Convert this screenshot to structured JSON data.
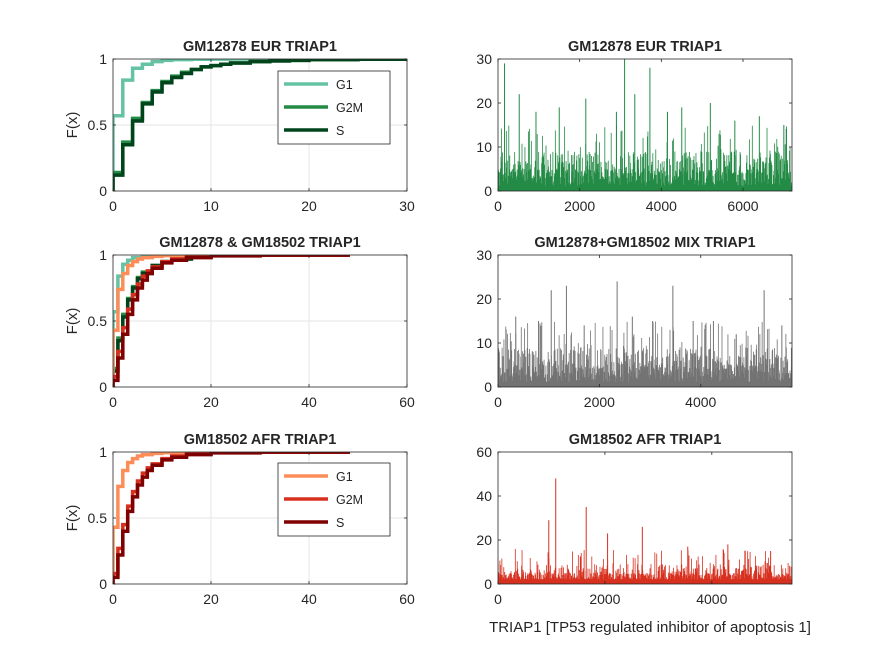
{
  "figure": {
    "xlabel": "TRIAP1 [TP53 regulated inhibitor of apoptosis 1]"
  },
  "chart_data": [
    {
      "type": "line",
      "title": "GM12878 EUR TRIAP1",
      "xlabel": "",
      "ylabel": "F(x)",
      "xlim": [
        0,
        30
      ],
      "ylim": [
        0,
        1
      ],
      "xticks": [
        0,
        10,
        20,
        30
      ],
      "yticks": [
        0,
        0.5,
        1
      ],
      "grid": true,
      "legend": "top-right",
      "series": [
        {
          "name": "G1",
          "color": "#66c2a4",
          "x": [
            0,
            1,
            2,
            3,
            4,
            5,
            6,
            8,
            10,
            12,
            15,
            20,
            30
          ],
          "y": [
            0.57,
            0.84,
            0.93,
            0.96,
            0.98,
            0.99,
            0.995,
            0.998,
            0.999,
            1.0,
            1.0,
            1.0,
            1.0
          ]
        },
        {
          "name": "G2M",
          "color": "#238b45",
          "x": [
            0,
            1,
            2,
            3,
            4,
            5,
            6,
            7,
            8,
            9,
            10,
            11,
            12,
            14,
            16,
            18,
            20,
            25,
            30
          ],
          "y": [
            0.14,
            0.37,
            0.55,
            0.67,
            0.76,
            0.83,
            0.87,
            0.9,
            0.92,
            0.94,
            0.95,
            0.96,
            0.97,
            0.98,
            0.987,
            0.99,
            0.995,
            0.998,
            1.0
          ]
        },
        {
          "name": "S",
          "color": "#00441b",
          "x": [
            0,
            1,
            2,
            3,
            4,
            5,
            6,
            7,
            8,
            9,
            10,
            11,
            12,
            14,
            16,
            18,
            20,
            25,
            30
          ],
          "y": [
            0.12,
            0.35,
            0.53,
            0.66,
            0.75,
            0.82,
            0.86,
            0.89,
            0.92,
            0.94,
            0.95,
            0.96,
            0.97,
            0.98,
            0.985,
            0.99,
            0.995,
            0.998,
            1.0
          ]
        }
      ]
    },
    {
      "type": "bar",
      "title": "GM12878 EUR TRIAP1",
      "xlabel": "",
      "ylabel": "",
      "xlim": [
        0,
        7200
      ],
      "ylim": [
        0,
        30
      ],
      "xticks": [
        0,
        2000,
        4000,
        6000
      ],
      "yticks": [
        0,
        10,
        20,
        30
      ],
      "grid": false,
      "color": "#238b45",
      "n": 7200,
      "peaks": [
        [
          160,
          29
        ],
        [
          520,
          22
        ],
        [
          930,
          18
        ],
        [
          1500,
          19
        ],
        [
          2150,
          21
        ],
        [
          2900,
          18
        ],
        [
          3100,
          30
        ],
        [
          3350,
          22
        ],
        [
          3720,
          28
        ],
        [
          4150,
          18
        ],
        [
          4500,
          19
        ],
        [
          5200,
          20
        ],
        [
          5800,
          16
        ],
        [
          6400,
          17
        ],
        [
          7000,
          15
        ]
      ]
    },
    {
      "type": "line",
      "title": "GM12878 & GM18502 TRIAP1",
      "xlabel": "",
      "ylabel": "F(x)",
      "xlim": [
        0,
        60
      ],
      "ylim": [
        0,
        1
      ],
      "xticks": [
        0,
        20,
        40,
        60
      ],
      "yticks": [
        0,
        0.5,
        1
      ],
      "grid": true,
      "legend": "none",
      "series": [
        {
          "color": "#66c2a4",
          "x": [
            0,
            1,
            2,
            3,
            4,
            6,
            8,
            12,
            30
          ],
          "y": [
            0.57,
            0.84,
            0.93,
            0.96,
            0.98,
            0.995,
            0.998,
            1.0,
            1.0
          ]
        },
        {
          "color": "#238b45",
          "x": [
            0,
            1,
            2,
            3,
            4,
            5,
            6,
            8,
            10,
            12,
            16,
            20,
            30
          ],
          "y": [
            0.14,
            0.37,
            0.55,
            0.67,
            0.76,
            0.83,
            0.87,
            0.92,
            0.95,
            0.97,
            0.987,
            0.995,
            1.0
          ]
        },
        {
          "color": "#00441b",
          "x": [
            0,
            1,
            2,
            3,
            4,
            5,
            6,
            8,
            10,
            12,
            16,
            20,
            30
          ],
          "y": [
            0.12,
            0.35,
            0.53,
            0.66,
            0.75,
            0.82,
            0.86,
            0.92,
            0.95,
            0.97,
            0.985,
            0.995,
            1.0
          ]
        },
        {
          "color": "#fc8d59",
          "x": [
            0,
            1,
            2,
            3,
            4,
            5,
            6,
            8,
            10,
            14,
            20,
            30,
            48
          ],
          "y": [
            0.43,
            0.74,
            0.86,
            0.92,
            0.95,
            0.97,
            0.98,
            0.99,
            0.995,
            0.998,
            0.999,
            1.0,
            1.0
          ]
        },
        {
          "color": "#d7301f",
          "x": [
            0,
            1,
            2,
            3,
            4,
            5,
            6,
            7,
            8,
            10,
            12,
            15,
            20,
            30,
            48
          ],
          "y": [
            0.08,
            0.27,
            0.45,
            0.59,
            0.7,
            0.78,
            0.84,
            0.88,
            0.91,
            0.95,
            0.97,
            0.985,
            0.995,
            0.999,
            1.0
          ]
        },
        {
          "color": "#7f0000",
          "x": [
            0,
            1,
            2,
            3,
            4,
            5,
            6,
            7,
            8,
            10,
            12,
            15,
            20,
            30,
            48
          ],
          "y": [
            0.05,
            0.22,
            0.4,
            0.55,
            0.66,
            0.75,
            0.81,
            0.86,
            0.9,
            0.94,
            0.96,
            0.98,
            0.993,
            0.999,
            1.0
          ]
        }
      ]
    },
    {
      "type": "bar",
      "title": "GM12878+GM18502 MIX TRIAP1",
      "xlabel": "",
      "ylabel": "",
      "xlim": [
        0,
        5800
      ],
      "ylim": [
        0,
        30
      ],
      "xticks": [
        0,
        2000,
        4000
      ],
      "yticks": [
        0,
        10,
        20,
        30
      ],
      "grid": false,
      "color": "#737373",
      "n": 5800,
      "peaks": [
        [
          350,
          16
        ],
        [
          800,
          15
        ],
        [
          1050,
          22
        ],
        [
          1350,
          23
        ],
        [
          1700,
          14
        ],
        [
          2350,
          24
        ],
        [
          2650,
          16
        ],
        [
          3050,
          15
        ],
        [
          3450,
          23
        ],
        [
          3850,
          15
        ],
        [
          4250,
          15
        ],
        [
          4700,
          12
        ],
        [
          5250,
          22
        ],
        [
          5600,
          14
        ]
      ]
    },
    {
      "type": "line",
      "title": "GM18502 AFR TRIAP1",
      "xlabel": "",
      "ylabel": "F(x)",
      "xlim": [
        0,
        60
      ],
      "ylim": [
        0,
        1
      ],
      "xticks": [
        0,
        20,
        40,
        60
      ],
      "yticks": [
        0,
        0.5,
        1
      ],
      "grid": true,
      "legend": "top-right",
      "series": [
        {
          "name": "G1",
          "color": "#fc8d59",
          "x": [
            0,
            1,
            2,
            3,
            4,
            5,
            6,
            8,
            10,
            14,
            20,
            30,
            48
          ],
          "y": [
            0.43,
            0.74,
            0.86,
            0.92,
            0.95,
            0.97,
            0.98,
            0.99,
            0.995,
            0.998,
            0.999,
            1.0,
            1.0
          ]
        },
        {
          "name": "G2M",
          "color": "#d7301f",
          "x": [
            0,
            1,
            2,
            3,
            4,
            5,
            6,
            7,
            8,
            10,
            12,
            15,
            20,
            30,
            48
          ],
          "y": [
            0.08,
            0.27,
            0.45,
            0.59,
            0.7,
            0.78,
            0.84,
            0.88,
            0.91,
            0.95,
            0.97,
            0.985,
            0.995,
            0.999,
            1.0
          ]
        },
        {
          "name": "S",
          "color": "#7f0000",
          "x": [
            0,
            1,
            2,
            3,
            4,
            5,
            6,
            7,
            8,
            10,
            12,
            15,
            20,
            30,
            48
          ],
          "y": [
            0.05,
            0.22,
            0.4,
            0.55,
            0.66,
            0.75,
            0.81,
            0.86,
            0.9,
            0.94,
            0.96,
            0.98,
            0.993,
            0.999,
            1.0
          ]
        }
      ]
    },
    {
      "type": "bar",
      "title": "GM18502 AFR TRIAP1",
      "xlabel": "",
      "ylabel": "",
      "xlim": [
        0,
        5500
      ],
      "ylim": [
        0,
        60
      ],
      "xticks": [
        0,
        2000,
        4000
      ],
      "yticks": [
        0,
        20,
        40,
        60
      ],
      "grid": false,
      "color": "#d7301f",
      "n": 5500,
      "peaks": [
        [
          950,
          29
        ],
        [
          1080,
          48
        ],
        [
          1650,
          35
        ],
        [
          2050,
          23
        ],
        [
          2700,
          26
        ],
        [
          3550,
          17
        ],
        [
          4300,
          18
        ],
        [
          5100,
          15
        ]
      ]
    }
  ]
}
